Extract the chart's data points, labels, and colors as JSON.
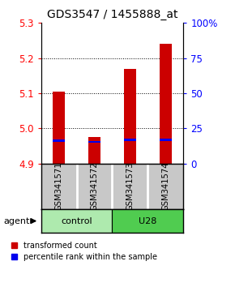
{
  "title": "GDS3547 / 1455888_at",
  "samples": [
    "GSM341571",
    "GSM341572",
    "GSM341573",
    "GSM341574"
  ],
  "red_tops": [
    5.105,
    4.975,
    5.17,
    5.24
  ],
  "blue_values": [
    4.965,
    4.962,
    4.967,
    4.967
  ],
  "bar_bottom": 4.9,
  "ylim_left": [
    4.9,
    5.3
  ],
  "ylim_right": [
    0,
    100
  ],
  "yticks_left": [
    4.9,
    5.0,
    5.1,
    5.2,
    5.3
  ],
  "yticks_right": [
    0,
    25,
    50,
    75,
    100
  ],
  "bar_color_red": "#cc0000",
  "bar_color_blue": "#0000ee",
  "bar_width": 0.35,
  "legend_red": "transformed count",
  "legend_blue": "percentile rank within the sample",
  "background_plot": "#ffffff",
  "background_sample": "#c8c8c8",
  "title_fontsize": 10,
  "tick_fontsize": 8.5,
  "ctrl_color": "#aeeaae",
  "u28_color": "#50cc50"
}
